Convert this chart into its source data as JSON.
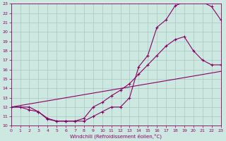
{
  "xlabel": "Windchill (Refroidissement éolien,°C)",
  "bg_color": "#cce8e0",
  "grid_color": "#aac8c0",
  "line_color": "#880066",
  "xlim": [
    0,
    23
  ],
  "ylim": [
    10,
    23
  ],
  "xticks": [
    0,
    1,
    2,
    3,
    4,
    5,
    6,
    7,
    8,
    9,
    10,
    11,
    12,
    13,
    14,
    15,
    16,
    17,
    18,
    19,
    20,
    21,
    22,
    23
  ],
  "yticks": [
    10,
    11,
    12,
    13,
    14,
    15,
    16,
    17,
    18,
    19,
    20,
    21,
    22,
    23
  ],
  "curve1_x": [
    0,
    1,
    2,
    3,
    4,
    5,
    6,
    7,
    8,
    9,
    10,
    11,
    12,
    13,
    14,
    15,
    16,
    17,
    18,
    19,
    20,
    21,
    22,
    23
  ],
  "curve1_y": [
    12,
    12,
    11.7,
    11.5,
    10.7,
    10.5,
    10.5,
    10.5,
    10.5,
    11.0,
    11.5,
    12.0,
    12.0,
    13.0,
    16.3,
    17.5,
    20.5,
    21.3,
    22.8,
    23.2,
    23.2,
    23.2,
    22.7,
    21.3
  ],
  "curve2_x": [
    0,
    2,
    3,
    4,
    5,
    6,
    7,
    8,
    9,
    10,
    11,
    12,
    13,
    14,
    15,
    16,
    17,
    18,
    19,
    20,
    21,
    22,
    23
  ],
  "curve2_y": [
    12,
    12,
    11.5,
    10.8,
    10.5,
    10.5,
    10.5,
    10.8,
    12.0,
    12.5,
    13.2,
    13.8,
    14.5,
    15.5,
    16.5,
    17.5,
    18.5,
    19.2,
    19.5,
    18.0,
    17.0,
    16.5,
    16.5
  ],
  "curve3_x": [
    0,
    23
  ],
  "curve3_y": [
    12,
    15.8
  ]
}
